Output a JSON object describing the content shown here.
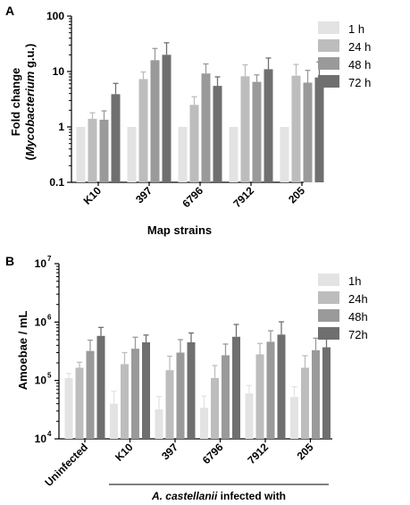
{
  "panel_a": {
    "letter": "A"
  },
  "panel_b": {
    "letter": "B"
  },
  "chart_data": [
    {
      "type": "bar",
      "panel": "A",
      "title": "",
      "xlabel": "Map strains",
      "ylabel": "Fold change (Mycobacterium g.u.)",
      "ylabel_line1": "Fold change",
      "ylabel_line2_pre": "(",
      "ylabel_line2_italic": "Mycobacterium",
      "ylabel_line2_post": " g.u.)",
      "yscale": "log",
      "ylim": [
        0.1,
        100
      ],
      "yticks": [
        0.1,
        1,
        10,
        100
      ],
      "ytick_labels": [
        "0.1",
        "1",
        "10",
        "100"
      ],
      "grid": false,
      "legend_position": "right",
      "categories": [
        "K10",
        "397",
        "6796",
        "7912",
        "205"
      ],
      "series": [
        {
          "name": "1 h",
          "color": "#e3e3e3",
          "values": [
            1,
            1,
            1,
            1,
            1
          ],
          "errors": [
            0,
            0,
            0,
            0,
            0
          ]
        },
        {
          "name": "24 h",
          "color": "#bdbdbd",
          "values": [
            1.4,
            7.3,
            2.5,
            8.2,
            8.4
          ],
          "errors": [
            0.4,
            2.5,
            1.0,
            5.0,
            5.0
          ]
        },
        {
          "name": "48 h",
          "color": "#9a9a9a",
          "values": [
            1.35,
            16,
            9.2,
            6.5,
            6.3
          ],
          "errors": [
            0.6,
            10,
            4.5,
            2.2,
            4.2
          ]
        },
        {
          "name": "72 h",
          "color": "#6f6f6f",
          "values": [
            3.9,
            20,
            5.5,
            11,
            7.8
          ],
          "errors": [
            2.2,
            13,
            2.5,
            6.5,
            7.0
          ]
        }
      ]
    },
    {
      "type": "bar",
      "panel": "B",
      "title": "",
      "xlabel": "A. castellanii infected with",
      "xlabel_italic": "A. castellanii",
      "xlabel_rest": " infected with",
      "ylabel": "Amoebae / mL",
      "yscale": "log",
      "ylim": [
        10000,
        10000000
      ],
      "yticks": [
        10000,
        100000,
        1000000,
        10000000
      ],
      "ytick_base": "10",
      "ytick_exponents": [
        "4",
        "5",
        "6",
        "7"
      ],
      "grid": false,
      "legend_position": "right",
      "categories": [
        "Uninfected",
        "K10",
        "397",
        "6796",
        "7912",
        "205"
      ],
      "series": [
        {
          "name": "1h",
          "color": "#e3e3e3",
          "values": [
            110000,
            40000,
            32000,
            34000,
            60000,
            52000
          ],
          "errors": [
            22000,
            25000,
            21000,
            20000,
            22000,
            26000
          ]
        },
        {
          "name": "24h",
          "color": "#bdbdbd",
          "values": [
            165000,
            190000,
            150000,
            110000,
            280000,
            165000
          ],
          "errors": [
            40000,
            110000,
            110000,
            70000,
            150000,
            100000
          ]
        },
        {
          "name": "48h",
          "color": "#9a9a9a",
          "values": [
            320000,
            350000,
            300000,
            270000,
            460000,
            330000
          ],
          "errors": [
            170000,
            200000,
            200000,
            150000,
            250000,
            200000
          ]
        },
        {
          "name": "72h",
          "color": "#6f6f6f",
          "values": [
            580000,
            450000,
            450000,
            560000,
            610000,
            370000
          ],
          "errors": [
            230000,
            150000,
            200000,
            350000,
            400000,
            230000
          ]
        }
      ]
    }
  ]
}
